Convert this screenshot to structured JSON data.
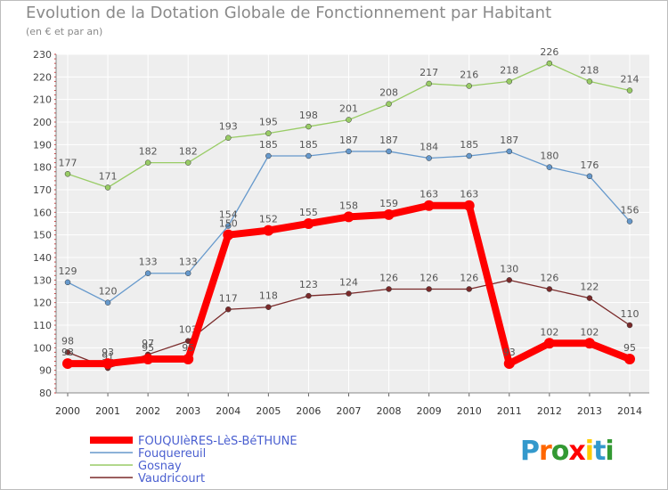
{
  "chart_data": {
    "type": "line",
    "title": "Evolution de la Dotation Globale de Fonctionnement par Habitant",
    "subtitle": "(en € et par an)",
    "xlabel": "",
    "ylabel": "",
    "ylim": [
      80,
      230
    ],
    "yticks": [
      80,
      90,
      100,
      110,
      120,
      130,
      140,
      150,
      160,
      170,
      180,
      190,
      200,
      210,
      220,
      230
    ],
    "grid": true,
    "legend_position": "bottom-left",
    "categories": [
      "2000",
      "2001",
      "2002",
      "2003",
      "2004",
      "2005",
      "2006",
      "2007",
      "2008",
      "2009",
      "2010",
      "2011",
      "2012",
      "2013",
      "2014"
    ],
    "series": [
      {
        "name": "Gosnay",
        "color": "#99cc66",
        "values": [
          177,
          171,
          182,
          182,
          193,
          195,
          198,
          201,
          208,
          217,
          216,
          218,
          226,
          218,
          214
        ]
      },
      {
        "name": "Fouquereuil",
        "color": "#6699cc",
        "values": [
          129,
          120,
          133,
          133,
          154,
          185,
          185,
          187,
          187,
          184,
          185,
          187,
          180,
          176,
          156
        ]
      },
      {
        "name": "Vaudricourt",
        "color": "#7a2a2a",
        "values": [
          98,
          91,
          97,
          103,
          117,
          118,
          123,
          124,
          126,
          126,
          126,
          130,
          126,
          122,
          110
        ]
      },
      {
        "name": "FOUQUIèRES-LèS-BéTHUNE",
        "color": "#ff0000",
        "values": [
          93,
          93,
          95,
          95,
          150,
          152,
          155,
          158,
          159,
          163,
          163,
          93,
          102,
          102,
          95
        ]
      }
    ],
    "legend_order": [
      "FOUQUIèRES-LèS-BéTHUNE",
      "Fouquereuil",
      "Gosnay",
      "Vaudricourt"
    ]
  },
  "branding": {
    "logo_letters": [
      "P",
      "r",
      "o",
      "x",
      "i",
      "t",
      "i"
    ],
    "logo_colors": [
      "#3399cc",
      "#ff6600",
      "#339933",
      "#ff0000",
      "#ffcc00",
      "#3399cc",
      "#339933"
    ]
  }
}
